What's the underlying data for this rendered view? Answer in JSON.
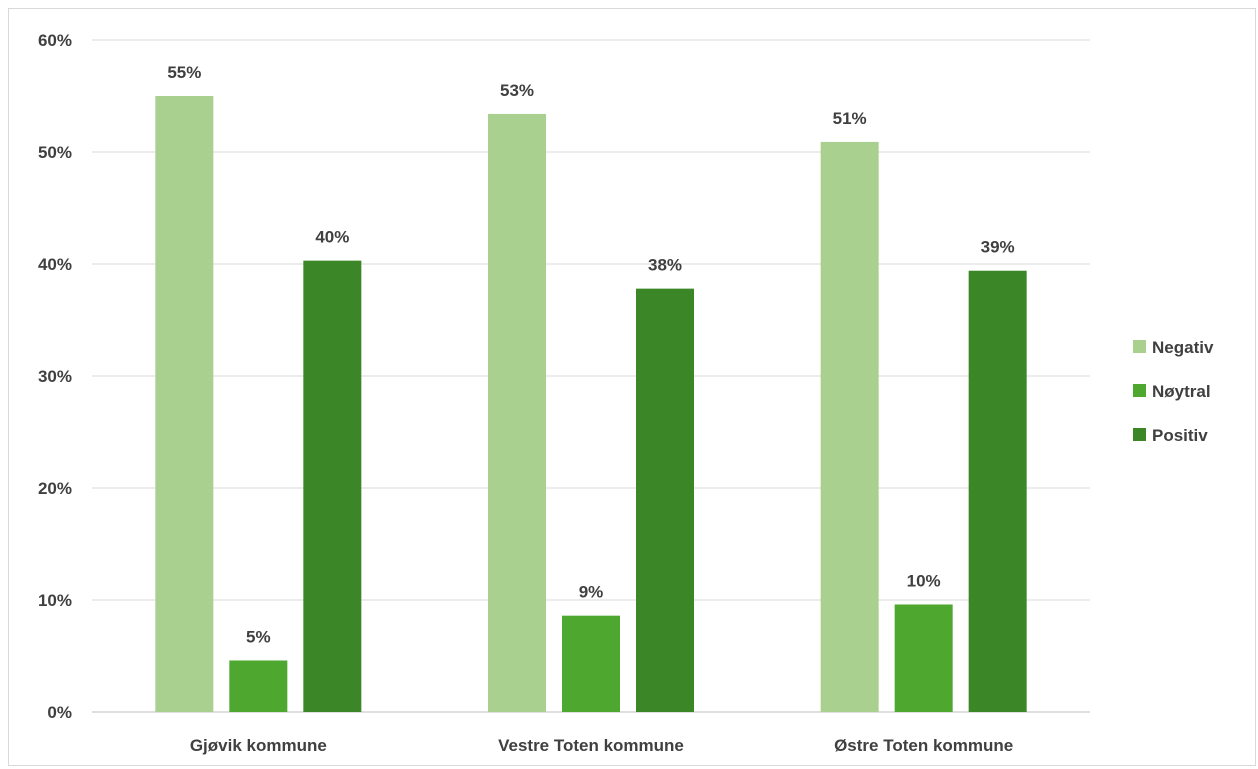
{
  "chart_data": {
    "type": "bar",
    "categories": [
      "Gjøvik kommune",
      "Vestre Toten kommune",
      "Østre Toten kommune"
    ],
    "series": [
      {
        "name": "Negativ",
        "color": "#a9d08e",
        "values": [
          55.0,
          53.4,
          50.9
        ],
        "labels": [
          "55%",
          "53%",
          "51%"
        ]
      },
      {
        "name": "Nøytral",
        "color": "#4ea72e",
        "values": [
          4.6,
          8.6,
          9.6
        ],
        "labels": [
          "5%",
          "9%",
          "10%"
        ]
      },
      {
        "name": "Positiv",
        "color": "#3b8626",
        "values": [
          40.3,
          37.8,
          39.4
        ],
        "labels": [
          "40%",
          "38%",
          "39%"
        ]
      }
    ],
    "y_ticks": [
      "0%",
      "10%",
      "20%",
      "30%",
      "40%",
      "50%",
      "60%"
    ],
    "ylim": [
      0,
      60
    ],
    "grid": true,
    "legend_position": "right"
  }
}
